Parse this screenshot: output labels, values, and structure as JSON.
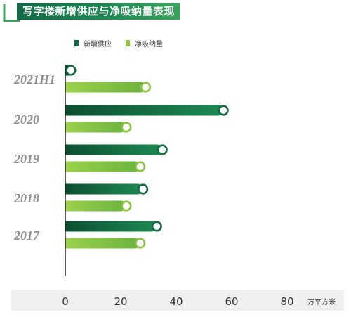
{
  "title": "写字楼新增供应与净吸纳量表现",
  "chart_data": {
    "type": "bar",
    "orientation": "horizontal",
    "title": "写字楼新增供应与净吸纳量表现",
    "categories": [
      "2021H1",
      "2020",
      "2019",
      "2018",
      "2017"
    ],
    "series": [
      {
        "name": "新增供应",
        "color": "#146b42",
        "values": [
          2,
          57,
          35,
          28,
          33
        ]
      },
      {
        "name": "净吸纳量",
        "color": "#8cc63e",
        "values": [
          29,
          22,
          27,
          22,
          27
        ]
      }
    ],
    "x_ticks": [
      0,
      20,
      40,
      60,
      80
    ],
    "xlim": [
      0,
      80
    ],
    "x_unit": "万平方米",
    "grid": false,
    "legend_position": "top-left"
  }
}
